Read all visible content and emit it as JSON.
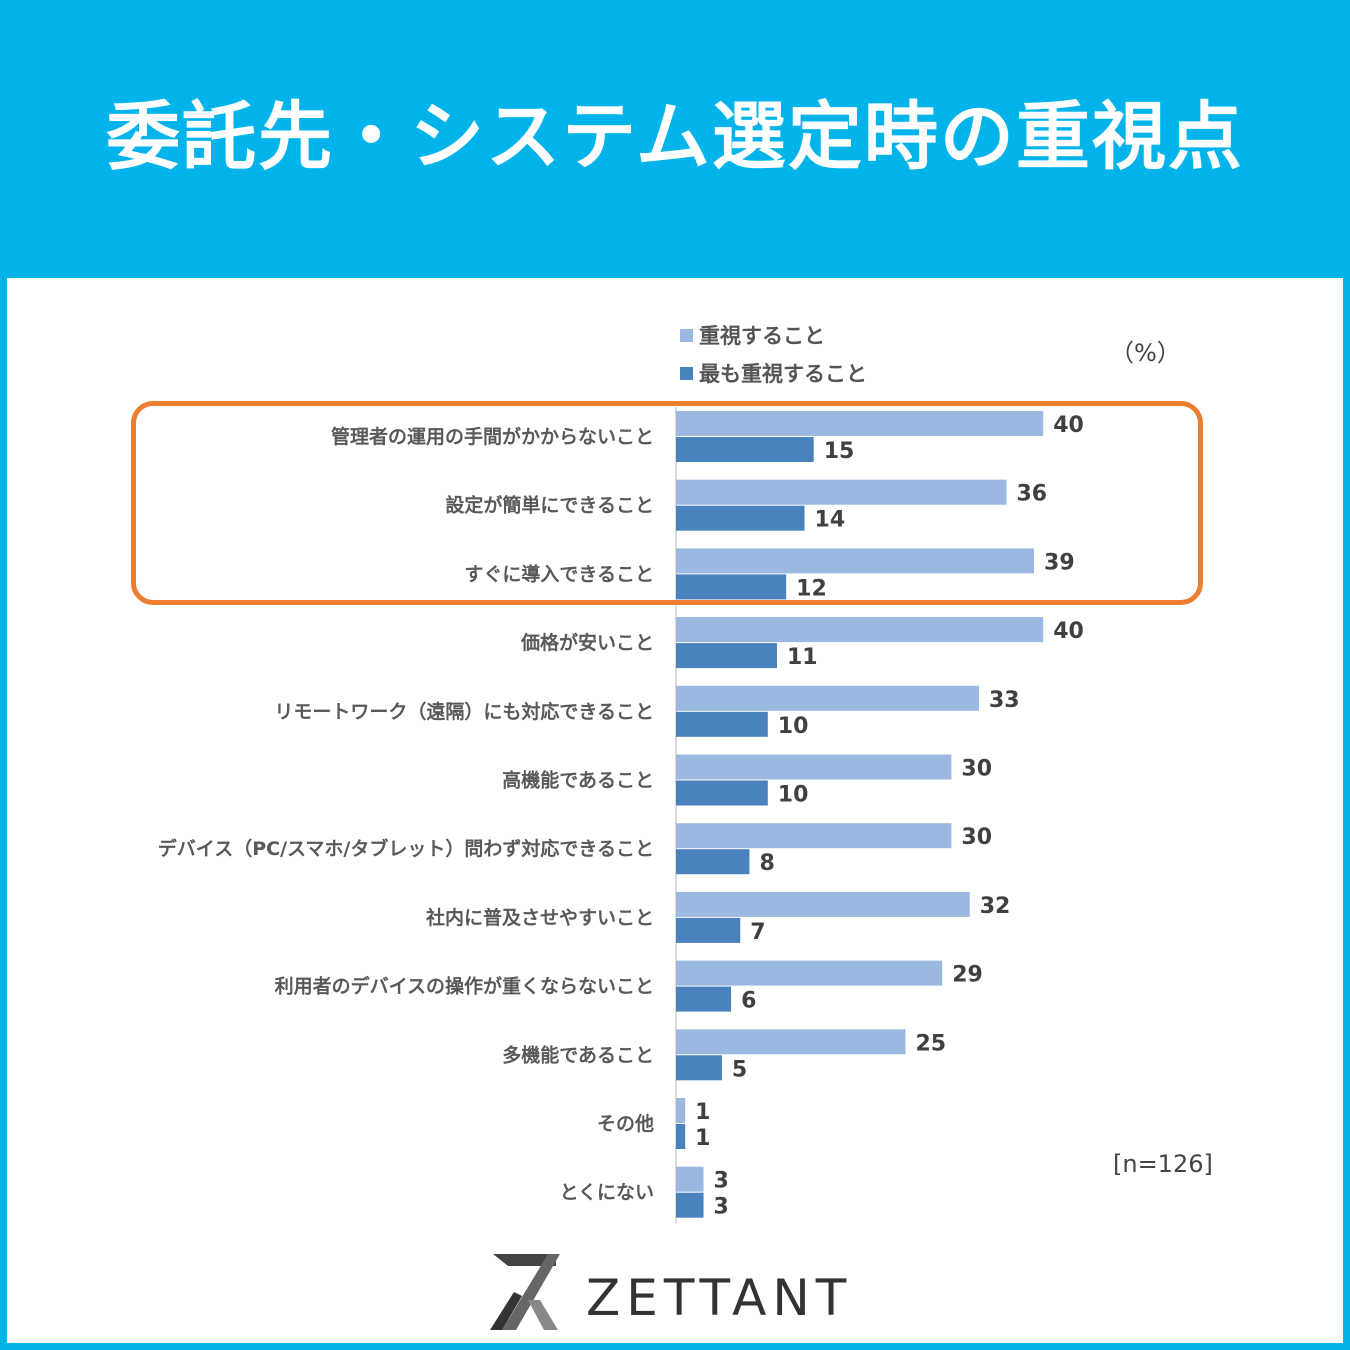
{
  "header": {
    "title": "委託先・システム選定時の重視点"
  },
  "unit_label": "（%）",
  "sample_label": "[n=126]",
  "logo": {
    "name": "ZETTANT"
  },
  "colors": {
    "background": "#00b4eb",
    "series1": "#9bb9e0",
    "series2": "#4a82bd",
    "highlight": "#ed7d31"
  },
  "chart_data": {
    "type": "bar",
    "orientation": "horizontal",
    "categories": [
      "管理者の運用の手間がかからないこと",
      "設定が簡単にできること",
      "すぐに導入できること",
      "価格が安いこと",
      "リモートワーク（遠隔）にも対応できること",
      "高機能であること",
      "デバイス（PC/スマホ/タブレット）問わず対応できること",
      "社内に普及させやすいこと",
      "利用者のデバイスの操作が重くならないこと",
      "多機能であること",
      "その他",
      "とくにない"
    ],
    "series": [
      {
        "name": "重視すること",
        "values": [
          40,
          36,
          39,
          40,
          33,
          30,
          30,
          32,
          29,
          25,
          1,
          3
        ]
      },
      {
        "name": "最も重視すること",
        "values": [
          15,
          14,
          12,
          11,
          10,
          10,
          8,
          7,
          6,
          5,
          1,
          3
        ]
      }
    ],
    "xlim": [
      0,
      50
    ],
    "grid": false,
    "legend_position": "top",
    "highlighted_categories": [
      0,
      1,
      2
    ]
  }
}
